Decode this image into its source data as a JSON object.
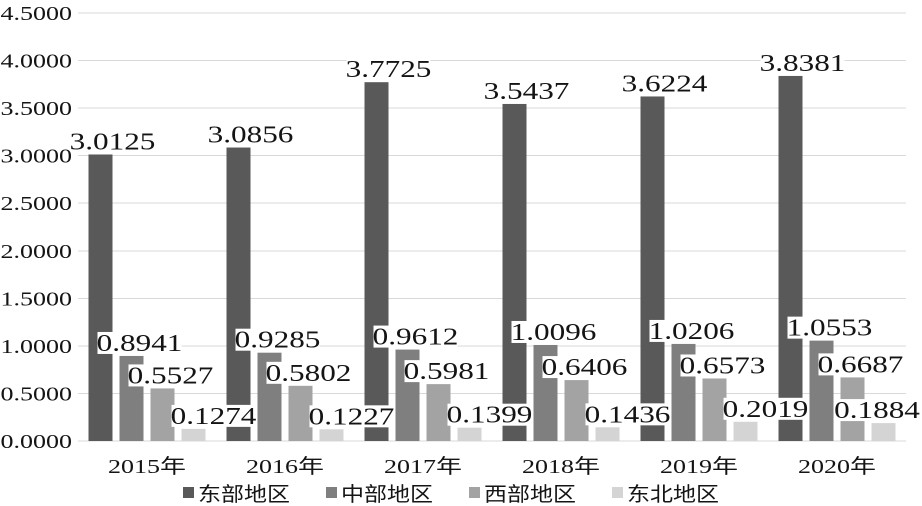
{
  "chart_data": {
    "type": "bar",
    "categories": [
      "2015年",
      "2016年",
      "2017年",
      "2018年",
      "2019年",
      "2020年"
    ],
    "series": [
      {
        "name": "东部地区",
        "values": [
          3.0125,
          3.0856,
          3.7725,
          3.5437,
          3.6224,
          3.8381
        ],
        "color": "#595959"
      },
      {
        "name": "中部地区",
        "values": [
          0.8941,
          0.9285,
          0.9612,
          1.0096,
          1.0206,
          1.0553
        ],
        "color": "#7f7f7f"
      },
      {
        "name": "西部地区",
        "values": [
          0.5527,
          0.5802,
          0.5981,
          0.6406,
          0.6573,
          0.6687
        ],
        "color": "#a3a3a3"
      },
      {
        "name": "东北地区",
        "values": [
          0.1274,
          0.1227,
          0.1399,
          0.1436,
          0.2019,
          0.1884
        ],
        "color": "#d4d4d4"
      }
    ],
    "ylim": [
      0,
      4.5
    ],
    "yticks": [
      "0.0000",
      "0.5000",
      "1.0000",
      "1.5000",
      "2.0000",
      "2.5000",
      "3.0000",
      "3.5000",
      "4.0000",
      "4.5000"
    ],
    "data_labels": true,
    "grid": true,
    "legend": "bottom"
  }
}
